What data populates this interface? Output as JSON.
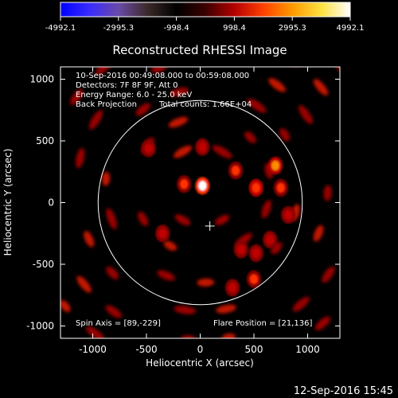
{
  "colorbar": {
    "ticks": [
      "-4992.1",
      "-2995.3",
      "-998.4",
      "998.4",
      "2995.3",
      "4992.1"
    ],
    "stops": [
      "#0000ff",
      "#3a2cff",
      "#6a4aa8",
      "#3b2a2a",
      "#000000",
      "#3b0000",
      "#b40000",
      "#ff4000",
      "#ff9a00",
      "#ffe040",
      "#ffffff"
    ],
    "min": -4992.1,
    "max": 4992.1
  },
  "plot": {
    "title": "Reconstructed RHESSI Image",
    "xlabel": "Heliocentric X (arcsec)",
    "ylabel": "Heliocentric Y (arcsec)",
    "xlim": [
      -1300,
      1300
    ],
    "ylim": [
      -1100,
      1100
    ],
    "xticks": [
      -1000,
      -500,
      0,
      500,
      1000
    ],
    "yticks": [
      -1000,
      -500,
      0,
      500,
      1000
    ],
    "solar_radius": 950,
    "center_marker": [
      90,
      -190
    ]
  },
  "annotations": {
    "time_range": "10-Sep-2016 00:49:08.000 to 00:59:08.000",
    "detectors": "Detectors: 7F 8F 9F, Att 0",
    "energy": "Energy Range: 6.0 - 25.0 keV",
    "method": "Back Projection",
    "counts": "Total counts: 1.66E+04",
    "spin_axis": "Spin Axis = [89,-229]",
    "flare_position": "Flare Position = [21,136]"
  },
  "footer": {
    "date": "12-Sep-2016 15:45"
  },
  "chart_data": {
    "type": "heatmap",
    "title": "Reconstructed RHESSI Image",
    "xlabel": "Heliocentric X (arcsec)",
    "ylabel": "Heliocentric Y (arcsec)",
    "xlim": [
      -1300,
      1300
    ],
    "ylim": [
      -1100,
      1100
    ],
    "color_range": [
      -4992.1,
      4992.1
    ],
    "source": {
      "x": 21,
      "y": 136
    },
    "bright_blobs": [
      {
        "x": 21,
        "y": 136,
        "v": 4992
      },
      {
        "x": 700,
        "y": 300,
        "v": 3600
      },
      {
        "x": 520,
        "y": 120,
        "v": 3000
      },
      {
        "x": 750,
        "y": 120,
        "v": 2800
      },
      {
        "x": 330,
        "y": 260,
        "v": 2700
      },
      {
        "x": -150,
        "y": 150,
        "v": 2500
      },
      {
        "x": 500,
        "y": -620,
        "v": 2600
      },
      {
        "x": 300,
        "y": -690,
        "v": 2400
      },
      {
        "x": 520,
        "y": -410,
        "v": 2200
      },
      {
        "x": 380,
        "y": -380,
        "v": 2100
      },
      {
        "x": -350,
        "y": -250,
        "v": 2000
      },
      {
        "x": 820,
        "y": -100,
        "v": 2300
      },
      {
        "x": -480,
        "y": 440,
        "v": 2000
      },
      {
        "x": 20,
        "y": 450,
        "v": 2000
      },
      {
        "x": 650,
        "y": -300,
        "v": 2000
      }
    ]
  }
}
